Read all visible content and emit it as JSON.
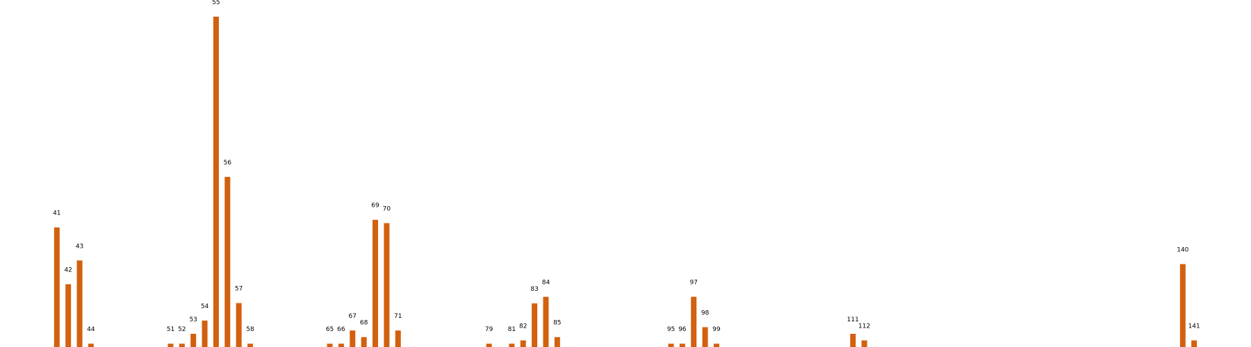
{
  "chart_data": {
    "type": "bar",
    "title": "",
    "xlabel": "",
    "ylabel": "",
    "grid": false,
    "legend": "none",
    "bar_color": "#D2600F",
    "xlim": [
      36,
      146
    ],
    "ylim": [
      0,
      100
    ],
    "categories": [
      "41",
      "42",
      "43",
      "44",
      "51",
      "52",
      "53",
      "54",
      "55",
      "56",
      "57",
      "58",
      "65",
      "66",
      "67",
      "68",
      "69",
      "70",
      "71",
      "79",
      "81",
      "82",
      "83",
      "84",
      "85",
      "95",
      "96",
      "97",
      "98",
      "99",
      "111",
      "112",
      "140",
      "141"
    ],
    "x": [
      41,
      42,
      43,
      44,
      51,
      52,
      53,
      54,
      55,
      56,
      57,
      58,
      65,
      66,
      67,
      68,
      69,
      70,
      71,
      79,
      81,
      82,
      83,
      84,
      85,
      95,
      96,
      97,
      98,
      99,
      111,
      112,
      140,
      141
    ],
    "values": [
      36.2,
      19,
      26.2,
      1,
      1,
      1,
      4,
      8,
      100,
      51.5,
      13.3,
      1,
      1,
      1,
      5,
      3,
      38.5,
      37.5,
      5,
      1,
      1,
      2,
      13.2,
      15.2,
      3,
      1,
      1,
      15.2,
      6,
      1,
      4,
      2,
      25.1,
      2
    ]
  }
}
